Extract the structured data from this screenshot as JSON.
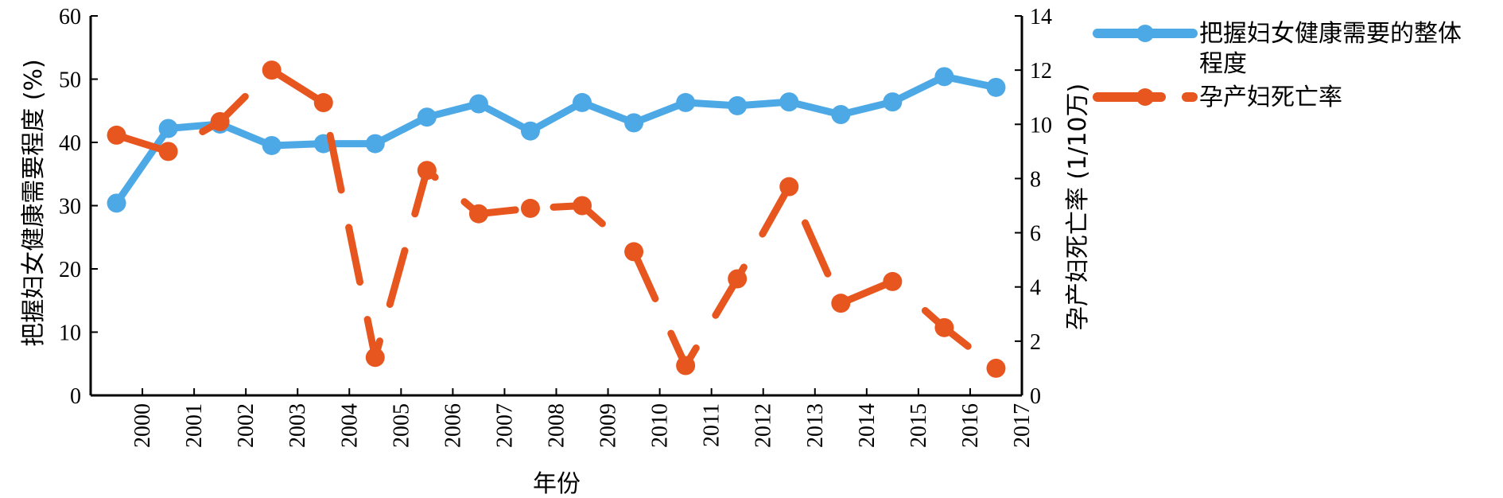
{
  "chart_data": {
    "type": "line",
    "categories": [
      "2000",
      "2001",
      "2002",
      "2003",
      "2004",
      "2005",
      "2006",
      "2007",
      "2008",
      "2009",
      "2010",
      "2011",
      "2012",
      "2013",
      "2014",
      "2015",
      "2016",
      "2017"
    ],
    "xlabel": "年份",
    "ylabel_left": "把握妇女健康需要程度 (%)",
    "ylabel_right": "孕产妇死亡率 (1/10万)",
    "ylim_left": [
      0,
      60
    ],
    "ylim_right": [
      0,
      14
    ],
    "yticks_left": [
      0,
      10,
      20,
      30,
      40,
      50,
      60
    ],
    "yticks_right": [
      0,
      2,
      4,
      6,
      8,
      10,
      12,
      14
    ],
    "grid": false,
    "legend_placement": "top-right",
    "series": [
      {
        "name": "把握妇女健康需要的整体程度",
        "axis": "left",
        "color": "#4DA9E6",
        "line_style": "solid",
        "values": [
          30.4,
          42.2,
          42.9,
          39.5,
          39.8,
          39.8,
          44.0,
          46.1,
          41.8,
          46.3,
          43.1,
          46.3,
          45.8,
          46.4,
          44.4,
          46.4,
          50.4,
          48.7
        ]
      },
      {
        "name": "孕产妇死亡率",
        "axis": "right",
        "color": "#E8561F",
        "line_style": "dashed",
        "values": [
          9.6,
          9.0,
          10.1,
          12.0,
          10.8,
          1.4,
          8.3,
          6.7,
          6.9,
          7.0,
          5.3,
          1.1,
          4.3,
          7.7,
          3.4,
          4.2,
          2.5,
          1.0
        ]
      }
    ]
  }
}
